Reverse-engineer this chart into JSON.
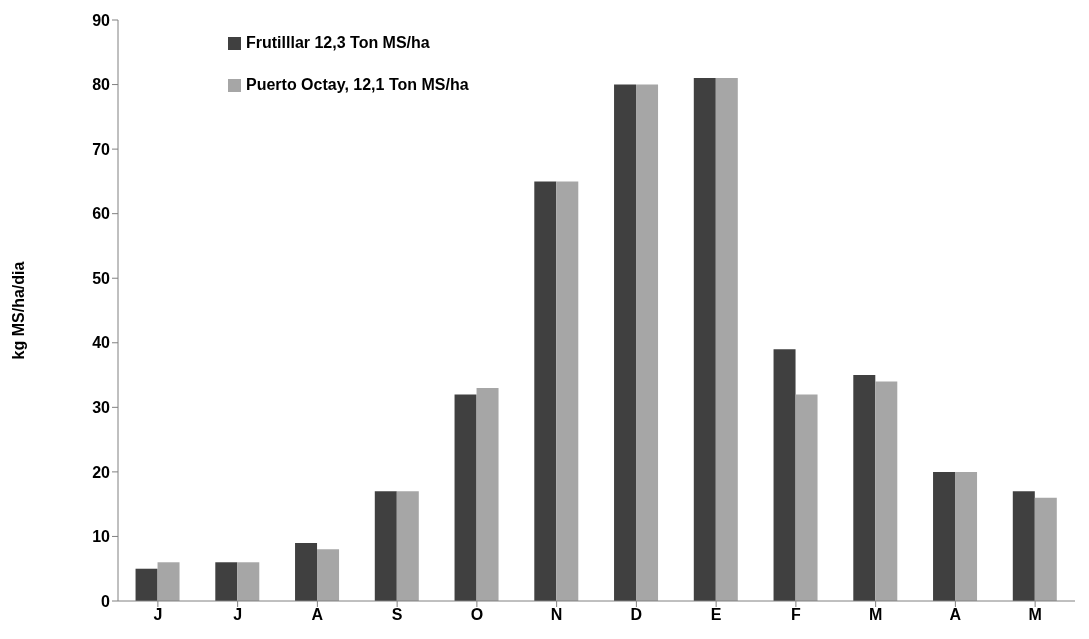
{
  "chart_data": {
    "type": "bar",
    "ylabel": "kg MS/ha/dia",
    "categories": [
      "J",
      "J",
      "A",
      "S",
      "O",
      "N",
      "D",
      "E",
      "F",
      "M",
      "A",
      "M"
    ],
    "series": [
      {
        "name": "Frutilllar 12,3 Ton MS/ha",
        "color": "#404040",
        "values": [
          5,
          6,
          9,
          17,
          32,
          65,
          80,
          81,
          39,
          35,
          20,
          17
        ]
      },
      {
        "name": "Puerto Octay, 12,1 Ton MS/ha",
        "color": "#a6a6a6",
        "values": [
          6,
          6,
          8,
          17,
          33,
          65,
          80,
          81,
          32,
          34,
          20,
          16
        ]
      }
    ],
    "ylim": [
      0,
      90
    ],
    "yticks": [
      0,
      10,
      20,
      30,
      40,
      50,
      60,
      70,
      80,
      90
    ],
    "grid": false,
    "legend": "top left"
  }
}
